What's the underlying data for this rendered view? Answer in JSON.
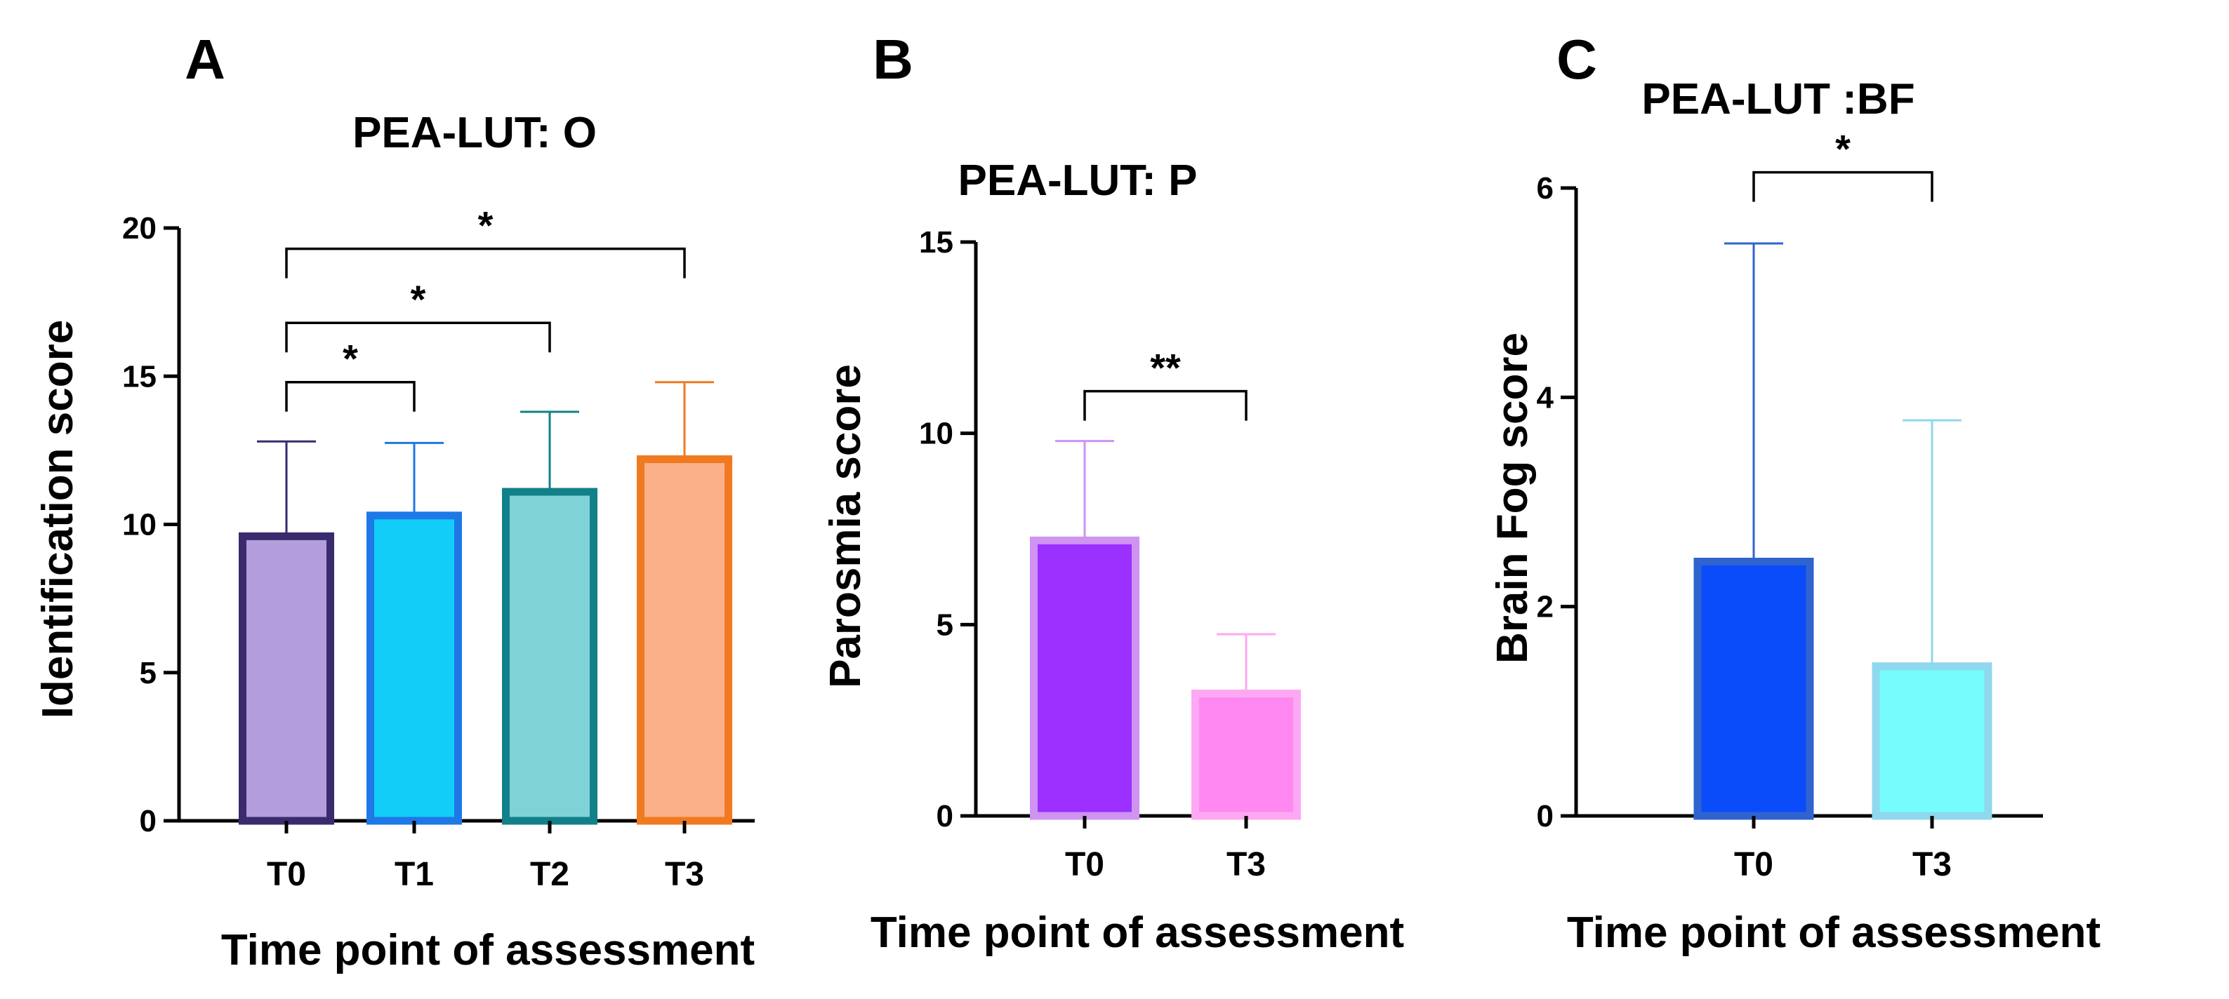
{
  "chart_data": [
    {
      "type": "bar",
      "panel": "A",
      "title": "PEA-LUT: O",
      "xlabel": "Time point of assessment",
      "ylabel": "Identification score",
      "categories": [
        "T0",
        "T1",
        "T2",
        "T3"
      ],
      "values": [
        9.6,
        10.3,
        11.1,
        12.2
      ],
      "errors": [
        3.2,
        2.45,
        2.7,
        2.6
      ],
      "fill_colors": [
        "#b39ddb",
        "#12cdf7",
        "#7fd3d6",
        "#fbb08a"
      ],
      "edge_colors": [
        "#3a2a6e",
        "#1e78e6",
        "#128088",
        "#f07a20"
      ],
      "ylim": [
        0,
        20
      ],
      "yticks": [
        0,
        5,
        10,
        15,
        20
      ],
      "significance": [
        {
          "from": 0,
          "to": 1,
          "label": "*",
          "y": 14.8
        },
        {
          "from": 0,
          "to": 2,
          "label": "*",
          "y": 16.8
        },
        {
          "from": 0,
          "to": 3,
          "label": "*",
          "y": 19.3
        }
      ]
    },
    {
      "type": "bar",
      "panel": "B",
      "title": "PEA-LUT: P",
      "xlabel": "Time point of assessment",
      "ylabel": "Parosmia score",
      "categories": [
        "T0",
        "T3"
      ],
      "values": [
        7.2,
        3.2
      ],
      "errors": [
        2.6,
        1.55
      ],
      "fill_colors": [
        "#9b30ff",
        "#ff88f2"
      ],
      "edge_colors": [
        "#cf93f2",
        "#fca8f2"
      ],
      "ylim": [
        0,
        15
      ],
      "yticks": [
        0,
        5,
        10,
        15
      ],
      "significance": [
        {
          "from": 0,
          "to": 1,
          "label": "**",
          "y": 11.1
        }
      ]
    },
    {
      "type": "bar",
      "panel": "C",
      "title": "PEA-LUT :BF",
      "xlabel": "Time point of assessment",
      "ylabel": "Brain Fog score",
      "categories": [
        "T0",
        "T3"
      ],
      "values": [
        2.43,
        1.43
      ],
      "errors": [
        3.04,
        2.35
      ],
      "fill_colors": [
        "#0a4cfa",
        "#77fcfd"
      ],
      "edge_colors": [
        "#2f64cf",
        "#8fd8ee"
      ],
      "ylim": [
        0,
        6
      ],
      "yticks": [
        0,
        2,
        4,
        6
      ],
      "significance": [
        {
          "from": 0,
          "to": 1,
          "label": "*",
          "y": 6.15
        }
      ]
    }
  ]
}
